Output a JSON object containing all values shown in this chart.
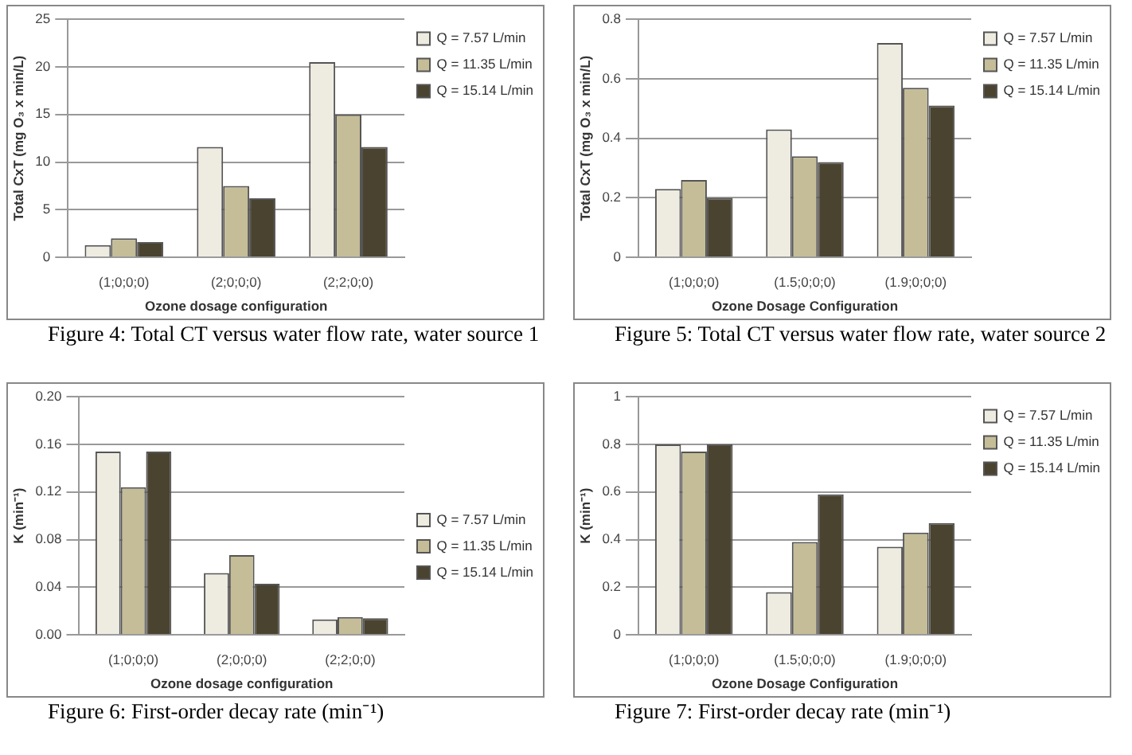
{
  "chart_data": [
    {
      "type": "bar",
      "title": "Figure 4: Total CT versus water flow rate, water source 1",
      "xlabel": "Ozone dosage configuration",
      "ylabel": "Total CxT (mg O₃ x min/L)",
      "categories": [
        "(1;0;0;0)",
        "(2;0;0;0)",
        "(2;2;0;0)"
      ],
      "series": [
        {
          "name": "Q = 7.57 L/min",
          "color": "#eeece1",
          "values": [
            1.3,
            11.6,
            20.5
          ]
        },
        {
          "name": "Q = 11.35 L/min",
          "color": "#c4bd97",
          "values": [
            2.0,
            7.5,
            15.0
          ]
        },
        {
          "name": "Q = 15.14 L/min",
          "color": "#4a4330",
          "values": [
            1.6,
            6.2,
            11.6
          ]
        }
      ],
      "ylim": [
        0,
        25
      ],
      "yticks": [
        0,
        5,
        10,
        15,
        20,
        25
      ],
      "grid": "y",
      "legend": "top right"
    },
    {
      "type": "bar",
      "title": "Figure 5: Total CT versus water flow rate, water source 2",
      "xlabel": "Ozone Dosage Configuration",
      "ylabel": "Total CxT (mg O₃ x min/L)",
      "categories": [
        "(1;0;0;0)",
        "(1.5;0;0;0)",
        "(1.9;0;0;0)"
      ],
      "series": [
        {
          "name": "Q = 7.57 L/min",
          "color": "#eeece1",
          "values": [
            0.23,
            0.43,
            0.72
          ]
        },
        {
          "name": "Q = 11.35 L/min",
          "color": "#c4bd97",
          "values": [
            0.26,
            0.34,
            0.57
          ]
        },
        {
          "name": "Q = 15.14 L/min",
          "color": "#4a4330",
          "values": [
            0.2,
            0.32,
            0.51
          ]
        }
      ],
      "ylim": [
        0,
        0.8
      ],
      "yticks": [
        0,
        0.2,
        0.4,
        0.6,
        0.8
      ],
      "grid": "y",
      "legend": "top right"
    },
    {
      "type": "bar",
      "title": "Figure 6: First-order decay rate (min⁻¹)",
      "xlabel": "Ozone dosage configuration",
      "ylabel": "K (min⁻¹)",
      "categories": [
        "(1;0;0;0)",
        "(2;0;0;0)",
        "(2;2;0;0)"
      ],
      "series": [
        {
          "name": "Q = 7.57 L/min",
          "color": "#eeece1",
          "values": [
            0.154,
            0.052,
            0.013
          ]
        },
        {
          "name": "Q = 11.35 L/min",
          "color": "#c4bd97",
          "values": [
            0.124,
            0.067,
            0.015
          ]
        },
        {
          "name": "Q = 15.14 L/min",
          "color": "#4a4330",
          "values": [
            0.154,
            0.043,
            0.014
          ]
        }
      ],
      "ylim": [
        0,
        0.2
      ],
      "yticks": [
        {
          "value": 0,
          "label": "0.00"
        },
        {
          "value": 0.04,
          "label": "0.04"
        },
        {
          "value": 0.08,
          "label": "0.08"
        },
        {
          "value": 0.12,
          "label": "0.12"
        },
        {
          "value": 0.16,
          "label": "0.16"
        },
        {
          "value": 0.2,
          "label": "0.20"
        }
      ],
      "grid": "y",
      "legend": "right"
    },
    {
      "type": "bar",
      "title": "Figure 7: First-order decay rate (min⁻¹)",
      "xlabel": "Ozone Dosage Configuration",
      "ylabel": "K (min⁻¹)",
      "categories": [
        "(1;0;0;0)",
        "(1.5;0;0;0)",
        "(1.9;0;0;0)"
      ],
      "series": [
        {
          "name": "Q = 7.57 L/min",
          "color": "#eeece1",
          "values": [
            0.8,
            0.18,
            0.37
          ]
        },
        {
          "name": "Q = 11.35 L/min",
          "color": "#c4bd97",
          "values": [
            0.77,
            0.39,
            0.43
          ]
        },
        {
          "name": "Q = 15.14 L/min",
          "color": "#4a4330",
          "values": [
            0.8,
            0.59,
            0.47
          ]
        }
      ],
      "ylim": [
        0,
        1
      ],
      "yticks": [
        0,
        0.2,
        0.4,
        0.6,
        0.8,
        1
      ],
      "grid": "y",
      "legend": "top right"
    }
  ]
}
